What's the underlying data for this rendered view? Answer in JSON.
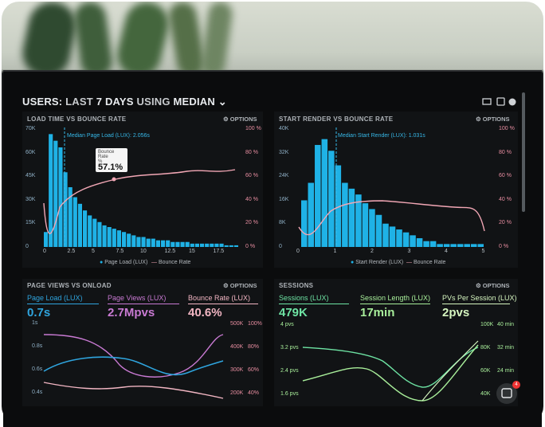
{
  "header": {
    "prefix": "USERS:",
    "middle": "LAST",
    "days": "7 DAYS",
    "using": "USING",
    "metric": "MEDIAN"
  },
  "panels": {
    "p1": {
      "title": "LOAD TIME VS BOUNCE RATE",
      "options": "⚙ OPTIONS",
      "median_label": "Median Page Load (LUX): 2.056s",
      "tooltip_title": "Bounce Rate",
      "tooltip_unit": "%",
      "tooltip_value": "57.1%",
      "yleft": [
        "70K",
        "60K",
        "45K",
        "30K",
        "15K",
        "0"
      ],
      "yright": [
        "100 %",
        "80 %",
        "60 %",
        "40 %",
        "20 %",
        "0 %"
      ],
      "xticks": [
        "0",
        "2.5",
        "5",
        "7.5",
        "10",
        "12.5",
        "15",
        "17.5"
      ],
      "legend_a": "Page Load (LUX)",
      "legend_b": "Bounce Rate"
    },
    "p2": {
      "title": "START RENDER VS BOUNCE RATE",
      "options": "⚙ OPTIONS",
      "median_label": "Median Start Render (LUX): 1.031s",
      "yleft": [
        "40K",
        "32K",
        "24K",
        "16K",
        "8K",
        "0"
      ],
      "yright": [
        "100 %",
        "80 %",
        "60 %",
        "40 %",
        "20 %",
        "0 %"
      ],
      "xticks": [
        "0",
        "1",
        "2",
        "3",
        "4",
        "5"
      ],
      "legend_a": "Start Render (LUX)",
      "legend_b": "Bounce Rate"
    },
    "p3": {
      "title": "PAGE VIEWS VS ONLOAD",
      "options": "⚙ OPTIONS",
      "m1_label": "Page Load (LUX)",
      "m1_value": "0.7s",
      "m2_label": "Page Views (LUX)",
      "m2_value": "2.7Mpvs",
      "m3_label": "Bounce Rate (LUX)",
      "m3_value": "40.6%",
      "yleft": [
        "1s",
        "0.8s",
        "0.6s",
        "0.4s"
      ],
      "yright_a": [
        "500K",
        "400K",
        "300K",
        "200K"
      ],
      "yright_b": [
        "100%",
        "80%",
        "60%",
        "40%"
      ]
    },
    "p4": {
      "title": "SESSIONS",
      "options": "⚙ OPTIONS",
      "m1_label": "Sessions (LUX)",
      "m1_value": "479K",
      "m2_label": "Session Length (LUX)",
      "m2_value": "17min",
      "m3_label": "PVs Per Session (LUX)",
      "m3_value": "2pvs",
      "yleft": [
        "4 pvs",
        "3.2 pvs",
        "2.4 pvs",
        "1.6 pvs"
      ],
      "yright_a": [
        "100K",
        "80K",
        "60K",
        "40K"
      ],
      "yright_b": [
        "40 min",
        "32 min",
        "24 min",
        "16 min"
      ]
    }
  },
  "chat": {
    "badge": "4"
  },
  "chart_data": [
    {
      "type": "bar",
      "title": "LOAD TIME VS BOUNCE RATE",
      "series": [
        {
          "name": "Page Load (LUX)",
          "values": [
            9,
            68,
            64,
            60,
            45,
            36,
            30,
            26,
            22,
            19,
            17,
            15,
            13,
            12,
            11,
            10,
            9,
            8,
            7,
            6,
            6,
            5,
            5,
            4,
            4,
            4,
            3,
            3,
            3,
            3,
            2,
            2,
            2,
            2,
            2,
            2,
            2,
            1,
            1,
            1
          ]
        }
      ],
      "xlim": [
        0,
        20
      ],
      "ylim": [
        0,
        72
      ]
    },
    {
      "type": "bar",
      "title": "START RENDER VS BOUNCE RATE",
      "series": [
        {
          "name": "Start Render (LUX)",
          "values": [
            16,
            22,
            35,
            37,
            33,
            28,
            22,
            20,
            18,
            15,
            13,
            11,
            8,
            7,
            6,
            5,
            4,
            3,
            2,
            2,
            1,
            1,
            1,
            1,
            1,
            1,
            1
          ]
        }
      ],
      "xlim": [
        0,
        5
      ],
      "ylim": [
        0,
        41
      ]
    }
  ],
  "colors": {
    "cyan": "#1fb2e6",
    "pink": "#f2a7b5",
    "blue": "#2fa5df",
    "purple": "#c97ad3",
    "mint": "#6ee4a4",
    "lime": "#b6f2a8"
  }
}
